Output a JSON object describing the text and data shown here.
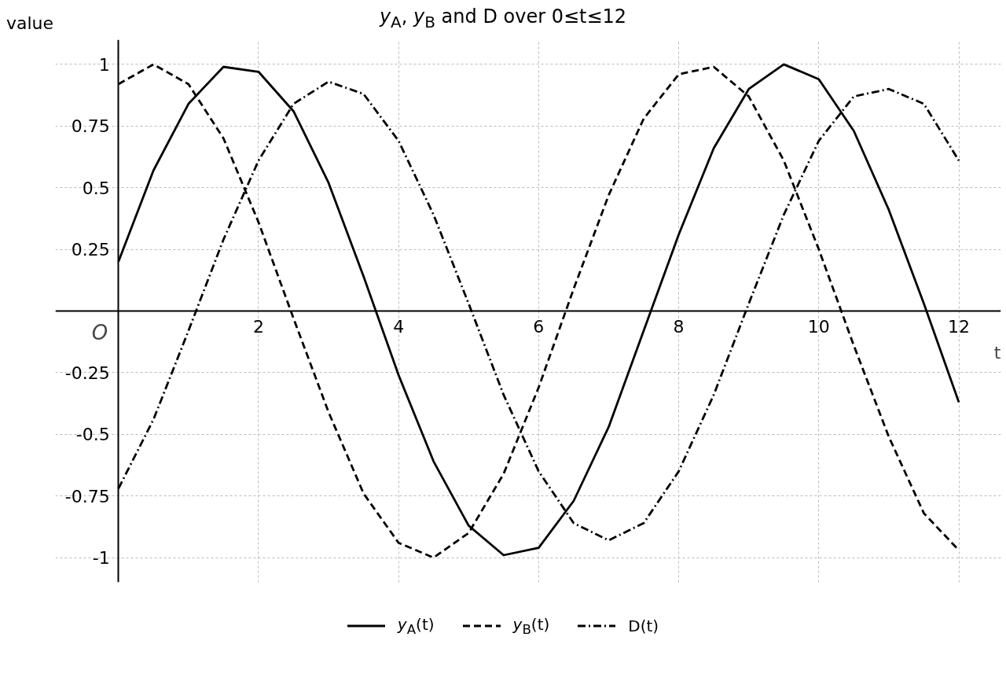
{
  "chart_data": {
    "type": "line",
    "title": "y$_{A}$, y$_{B}$ and D over 0≤t≤12",
    "xlabel": "t",
    "ylabel": "value",
    "annotations": [
      "O"
    ],
    "x": [
      0,
      0.5,
      1,
      1.5,
      2,
      2.5,
      3,
      3.5,
      4,
      4.5,
      5,
      5.5,
      6,
      6.5,
      7,
      7.5,
      8,
      8.5,
      9,
      9.5,
      10,
      10.5,
      11,
      11.5,
      12
    ],
    "series": [
      {
        "name": "y$_{A}$(t)",
        "color": "#000000",
        "line_style": "solid",
        "values": [
          0.2,
          0.57,
          0.84,
          0.99,
          0.97,
          0.81,
          0.52,
          0.14,
          -0.26,
          -0.61,
          -0.87,
          -0.99,
          -0.96,
          -0.77,
          -0.47,
          -0.08,
          0.31,
          0.66,
          0.9,
          1.0,
          0.94,
          0.73,
          0.41,
          0.03,
          -0.37
        ]
      },
      {
        "name": "y$_{B}$(t)",
        "color": "#000000",
        "line_style": "dashed",
        "values": [
          0.92,
          1.0,
          0.92,
          0.7,
          0.36,
          -0.03,
          -0.41,
          -0.74,
          -0.94,
          -1.0,
          -0.9,
          -0.66,
          -0.31,
          0.09,
          0.47,
          0.78,
          0.96,
          0.99,
          0.87,
          0.61,
          0.25,
          -0.14,
          -0.51,
          -0.82,
          -0.97
        ]
      },
      {
        "name": "D(t)",
        "color": "#000000",
        "line_style": "dashdot",
        "values": [
          -0.72,
          -0.44,
          -0.08,
          0.29,
          0.61,
          0.84,
          0.93,
          0.88,
          0.69,
          0.39,
          0.03,
          -0.34,
          -0.65,
          -0.86,
          -0.93,
          -0.86,
          -0.65,
          -0.34,
          0.03,
          0.39,
          0.69,
          0.87,
          0.9,
          0.84,
          0.61
        ]
      }
    ],
    "xlim": [
      -0.9,
      12.6
    ],
    "ylim": [
      -1.1,
      1.1
    ],
    "xticks": [
      2,
      4,
      6,
      8,
      10,
      12
    ],
    "yticks": [
      -1,
      -0.75,
      -0.5,
      -0.25,
      0.25,
      0.5,
      0.75,
      1
    ],
    "grid": true,
    "legend": "bottom"
  }
}
